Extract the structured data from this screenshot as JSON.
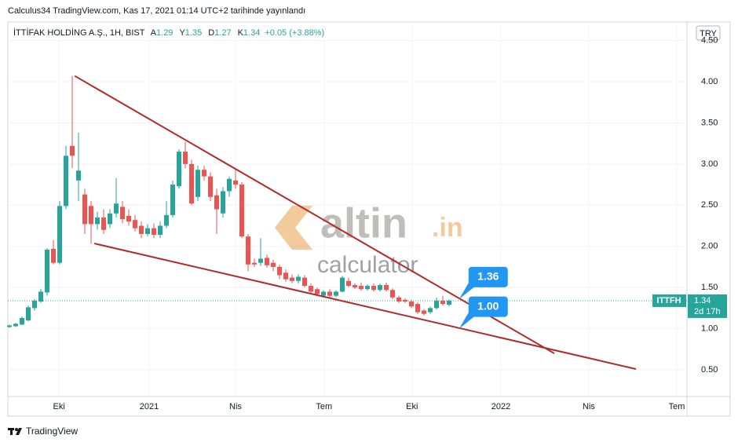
{
  "header": "Calculus34 TradingView.com, Kas 17, 2021 01:14 UTC+2 tarihinde yayınlandı",
  "footer": "TradingView",
  "chart_data": {
    "type": "candlestick",
    "title": "İTTİFAK HOLDİNG A.Ş., 1H, BIST",
    "ohlc_legend": [
      {
        "label": "A",
        "value": 1.29
      },
      {
        "label": "Y",
        "value": 1.35
      },
      {
        "label": "D",
        "value": 1.27
      },
      {
        "label": "K",
        "value": 1.34
      }
    ],
    "change": "+0.05 (+3.88%)",
    "currency": "TRY",
    "up_color": "#26a69a",
    "down_color": "#ef5350",
    "series": [
      {
        "name": "ITTFH",
        "open": [
          1.02,
          1.03,
          1.05,
          1.1,
          1.25,
          1.33,
          1.44,
          1.97,
          1.8,
          2.49,
          3.22,
          2.8,
          2.63,
          2.49,
          2.27,
          2.35,
          2.27,
          2.4,
          2.48,
          2.37,
          2.32,
          2.25,
          2.15,
          2.22,
          2.14,
          2.25,
          2.38,
          2.73,
          3.15,
          3.0,
          2.6,
          2.93,
          2.85,
          2.62,
          2.4,
          2.67,
          2.8,
          2.75,
          2.12,
          1.8,
          1.8,
          1.86,
          1.8,
          1.75,
          1.68,
          1.62,
          1.58,
          1.62,
          1.52,
          1.48,
          1.4,
          1.45,
          1.4,
          1.45,
          1.58,
          1.53,
          1.52,
          1.48,
          1.52,
          1.47,
          1.53,
          1.47,
          1.38,
          1.35,
          1.33,
          1.3,
          1.22,
          1.2,
          1.25,
          1.34,
          1.29
        ],
        "high": [
          1.05,
          1.07,
          1.15,
          1.28,
          1.36,
          1.48,
          1.98,
          2.08,
          2.55,
          3.22,
          4.07,
          3.38,
          2.7,
          2.55,
          2.42,
          2.45,
          2.45,
          2.83,
          2.55,
          2.45,
          2.38,
          2.3,
          2.27,
          2.28,
          2.3,
          2.55,
          2.8,
          3.18,
          3.27,
          3.05,
          2.98,
          2.98,
          2.9,
          2.7,
          2.72,
          2.85,
          2.95,
          2.78,
          2.15,
          1.85,
          2.1,
          1.9,
          1.84,
          1.78,
          1.72,
          1.66,
          1.66,
          1.65,
          1.55,
          1.5,
          1.47,
          1.48,
          1.47,
          1.64,
          1.62,
          1.55,
          1.56,
          1.54,
          1.55,
          1.55,
          1.56,
          1.49,
          1.4,
          1.37,
          1.35,
          1.32,
          1.24,
          1.27,
          1.38,
          1.4,
          1.35
        ],
        "low": [
          1.01,
          1.02,
          1.04,
          1.09,
          1.22,
          1.31,
          1.4,
          1.78,
          1.78,
          2.45,
          2.95,
          2.55,
          2.15,
          2.03,
          2.2,
          2.15,
          2.22,
          2.35,
          2.28,
          2.25,
          2.18,
          2.1,
          2.12,
          2.1,
          2.1,
          2.22,
          2.35,
          2.7,
          2.95,
          2.5,
          2.55,
          2.8,
          2.55,
          2.15,
          2.35,
          2.6,
          2.7,
          2.1,
          1.7,
          1.75,
          1.76,
          1.74,
          1.7,
          1.6,
          1.57,
          1.55,
          1.55,
          1.5,
          1.43,
          1.4,
          1.38,
          1.38,
          1.38,
          1.44,
          1.5,
          1.48,
          1.46,
          1.46,
          1.45,
          1.45,
          1.45,
          1.36,
          1.31,
          1.31,
          1.25,
          1.18,
          1.16,
          1.18,
          1.23,
          1.28,
          1.27
        ],
        "close": [
          1.04,
          1.06,
          1.13,
          1.26,
          1.34,
          1.45,
          1.96,
          1.8,
          2.49,
          3.1,
          3.1,
          2.92,
          2.27,
          2.27,
          2.35,
          2.2,
          2.4,
          2.52,
          2.33,
          2.3,
          2.22,
          2.15,
          2.22,
          2.14,
          2.25,
          2.38,
          2.75,
          3.15,
          3.0,
          2.52,
          2.93,
          2.85,
          2.6,
          2.45,
          2.67,
          2.82,
          2.75,
          2.12,
          1.78,
          1.78,
          1.85,
          1.77,
          1.75,
          1.65,
          1.6,
          1.58,
          1.63,
          1.52,
          1.45,
          1.42,
          1.45,
          1.4,
          1.45,
          1.62,
          1.52,
          1.5,
          1.48,
          1.52,
          1.47,
          1.53,
          1.47,
          1.38,
          1.33,
          1.33,
          1.27,
          1.2,
          1.18,
          1.25,
          1.34,
          1.3,
          1.34
        ]
      }
    ],
    "xlim": [
      -0.25,
      107.875
    ],
    "xticks": [
      {
        "value": 7.9,
        "label": "Eki"
      },
      {
        "value": 22.25,
        "label": "2021"
      },
      {
        "value": 36,
        "label": "Nis"
      },
      {
        "value": 50.1,
        "label": "Tem"
      },
      {
        "value": 64.1,
        "label": "Eki"
      },
      {
        "value": 78.25,
        "label": "2022"
      },
      {
        "value": 92.25,
        "label": "Nis"
      },
      {
        "value": 106.25,
        "label": "Tem"
      }
    ],
    "ylim": [
      0.176,
      4.725
    ],
    "yticks": [
      {
        "value": 0.5,
        "label": "0.50"
      },
      {
        "value": 1,
        "label": "1.00"
      },
      {
        "value": 1.5,
        "label": "1.50"
      },
      {
        "value": 2,
        "label": "2.00"
      },
      {
        "value": 2.5,
        "label": "2.50"
      },
      {
        "value": 3,
        "label": "3.00"
      },
      {
        "value": 3.5,
        "label": "3.50"
      },
      {
        "value": 4,
        "label": "4.00"
      },
      {
        "value": 4.5,
        "label": "4.50"
      }
    ],
    "grid": true,
    "trendline_color": "#b02a2a",
    "trendlines": [
      [
        [
          10.4,
          4.07
        ],
        [
          86.75,
          0.7
        ]
      ],
      [
        [
          13.5,
          2.035
        ],
        [
          99.75,
          0.51
        ]
      ]
    ],
    "callout_x": 71.6,
    "callouts": [
      1.36,
      {
        "value": 1,
        "label": "1.00"
      }
    ],
    "last_price": {
      "symbol": "ITTFH",
      "value": 1.34,
      "countdown": "2d 17h"
    },
    "watermark": {
      "brand": "altin",
      "domain": ".in",
      "sub": "calculator"
    }
  }
}
